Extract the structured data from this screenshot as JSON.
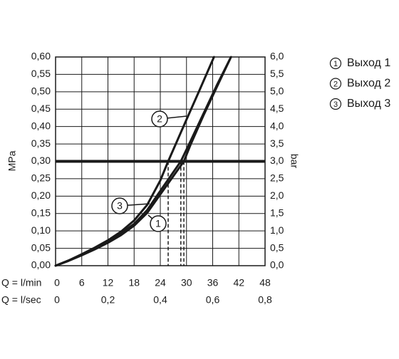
{
  "chart_data": {
    "type": "line",
    "x_label": "Q = l/min",
    "x2_label": "Q = l/sec",
    "y_label": "MPa",
    "y2_label": "bar",
    "xlim": [
      0,
      48
    ],
    "xticks": [
      0,
      6,
      12,
      18,
      24,
      30,
      36,
      42,
      48
    ],
    "x2lim": [
      0,
      0.8
    ],
    "x2ticks": [
      0,
      {
        "value": 0.2,
        "label": "0,2"
      },
      {
        "value": 0.4,
        "label": "0,4"
      },
      {
        "value": 0.6,
        "label": "0,6"
      },
      {
        "value": 0.8,
        "label": "0,8"
      }
    ],
    "ylim": [
      0,
      0.6
    ],
    "yticks": [
      {
        "value": 0,
        "label": "0,00"
      },
      {
        "value": 0.05,
        "label": "0,05"
      },
      {
        "value": 0.1,
        "label": "0,10"
      },
      {
        "value": 0.15,
        "label": "0,15"
      },
      {
        "value": 0.2,
        "label": "0,20"
      },
      {
        "value": 0.25,
        "label": "0,25"
      },
      {
        "value": 0.3,
        "label": "0,30"
      },
      {
        "value": 0.35,
        "label": "0,35"
      },
      {
        "value": 0.4,
        "label": "0,40"
      },
      {
        "value": 0.45,
        "label": "0,45"
      },
      {
        "value": 0.5,
        "label": "0,50"
      },
      {
        "value": 0.55,
        "label": "0,55"
      },
      {
        "value": 0.6,
        "label": "0,60"
      }
    ],
    "y2lim": [
      0,
      6
    ],
    "y2ticks": [
      {
        "value": 0,
        "label": "0,0"
      },
      {
        "value": 0.5,
        "label": "0,5"
      },
      {
        "value": 1,
        "label": "1,0"
      },
      {
        "value": 1.5,
        "label": "1,5"
      },
      {
        "value": 2,
        "label": "2,0"
      },
      {
        "value": 2.5,
        "label": "2,5"
      },
      {
        "value": 3,
        "label": "3,0"
      },
      {
        "value": 3.5,
        "label": "3,5"
      },
      {
        "value": 4,
        "label": "4,0"
      },
      {
        "value": 4.5,
        "label": "4,5"
      },
      {
        "value": 5,
        "label": "5,0"
      },
      {
        "value": 5.5,
        "label": "5,5"
      },
      {
        "value": 6,
        "label": "6,0"
      }
    ],
    "grid": true,
    "reference_line": 0.3,
    "series": [
      {
        "name": "Выход 1",
        "callout": "1",
        "color": "#1a1a1a",
        "crossing_x": 29.4,
        "x": [
          0,
          3,
          6,
          9,
          12,
          15,
          18,
          21,
          24,
          29.4,
          31,
          34,
          37,
          40.2
        ],
        "values": [
          0,
          0.014,
          0.03,
          0.047,
          0.066,
          0.088,
          0.115,
          0.152,
          0.205,
          0.3,
          0.35,
          0.435,
          0.515,
          0.6
        ]
      },
      {
        "name": "Выход 2",
        "callout": "2",
        "color": "#1a1a1a",
        "crossing_x": 25.8,
        "x": [
          0,
          3,
          6,
          9,
          12,
          15,
          18,
          21,
          24,
          25.8,
          30,
          33,
          36.3
        ],
        "values": [
          0,
          0.015,
          0.033,
          0.052,
          0.073,
          0.098,
          0.13,
          0.175,
          0.245,
          0.3,
          0.42,
          0.505,
          0.6
        ]
      },
      {
        "name": "Выход 3",
        "callout": "3",
        "color": "#1a1a1a",
        "crossing_x": 28.7,
        "x": [
          0,
          3,
          6,
          9,
          12,
          15,
          18,
          21,
          24,
          28.7,
          31,
          34,
          37,
          40
        ],
        "values": [
          0,
          0.015,
          0.032,
          0.05,
          0.07,
          0.093,
          0.12,
          0.16,
          0.215,
          0.3,
          0.36,
          0.44,
          0.52,
          0.595
        ]
      }
    ]
  }
}
